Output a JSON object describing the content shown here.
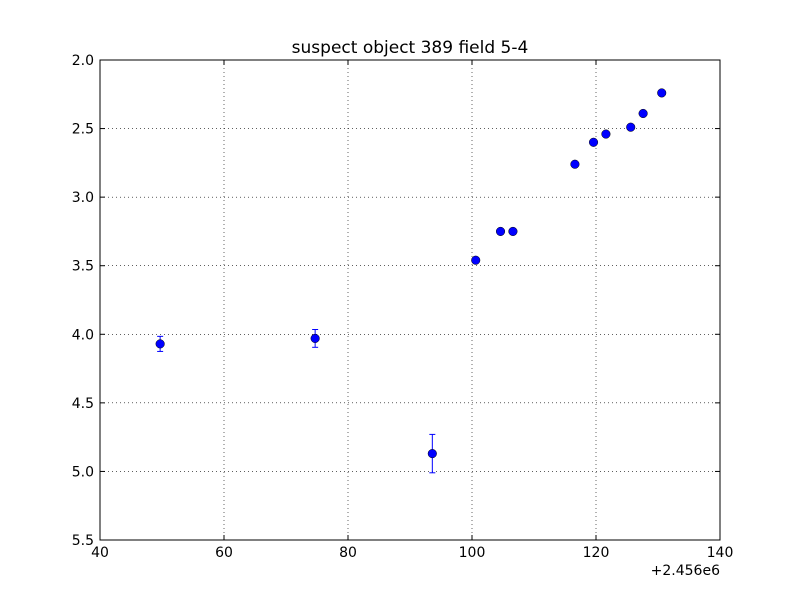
{
  "chart_data": {
    "type": "scatter",
    "title": "suspect object 389 field 5-4",
    "xlabel": "",
    "ylabel": "",
    "x_offset_label": "+2.456e6",
    "xlim": [
      40,
      140
    ],
    "ylim": [
      5.5,
      2.0
    ],
    "y_inverted": true,
    "grid": true,
    "x_ticks": [
      40,
      60,
      80,
      100,
      120,
      140
    ],
    "x_tick_labels": [
      "40",
      "60",
      "80",
      "100",
      "120",
      "140"
    ],
    "y_ticks": [
      2.0,
      2.5,
      3.0,
      3.5,
      4.0,
      4.5,
      5.0,
      5.5
    ],
    "y_tick_labels": [
      "2.0",
      "2.5",
      "3.0",
      "3.5",
      "4.0",
      "4.5",
      "5.0",
      "5.5"
    ],
    "marker_color": "#0000ff",
    "series": [
      {
        "points": [
          {
            "x": 49.7,
            "y": 4.07,
            "yerr": 0.055
          },
          {
            "x": 74.7,
            "y": 4.03,
            "yerr": 0.065
          },
          {
            "x": 93.6,
            "y": 4.87,
            "yerr": 0.14
          },
          {
            "x": 100.6,
            "y": 3.46,
            "yerr": 0.02
          },
          {
            "x": 104.6,
            "y": 3.25,
            "yerr": 0.02
          },
          {
            "x": 106.6,
            "y": 3.25,
            "yerr": 0.02
          },
          {
            "x": 116.6,
            "y": 2.76,
            "yerr": 0.01
          },
          {
            "x": 119.6,
            "y": 2.6,
            "yerr": 0.01
          },
          {
            "x": 121.6,
            "y": 2.54,
            "yerr": 0.01
          },
          {
            "x": 125.6,
            "y": 2.49,
            "yerr": 0.01
          },
          {
            "x": 127.6,
            "y": 2.39,
            "yerr": 0.01
          },
          {
            "x": 130.6,
            "y": 2.24,
            "yerr": 0.01
          }
        ]
      }
    ]
  }
}
